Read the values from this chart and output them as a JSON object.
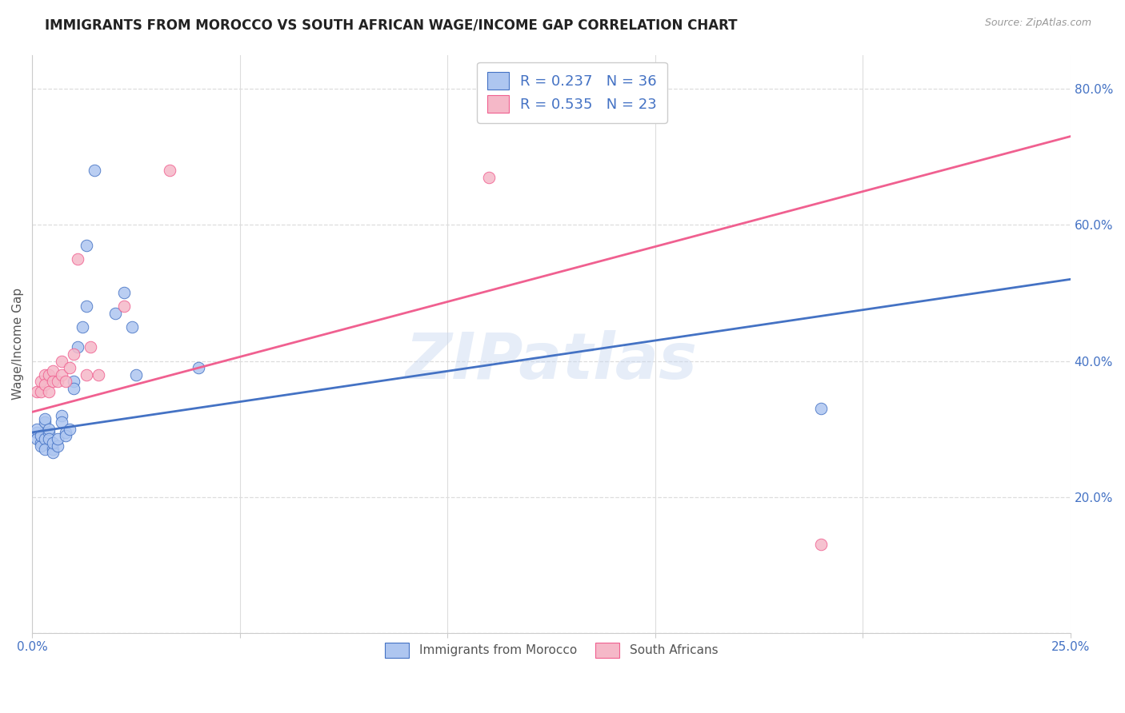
{
  "title": "IMMIGRANTS FROM MOROCCO VS SOUTH AFRICAN WAGE/INCOME GAP CORRELATION CHART",
  "source": "Source: ZipAtlas.com",
  "ylabel": "Wage/Income Gap",
  "xlim": [
    0.0,
    0.25
  ],
  "ylim": [
    0.0,
    0.85
  ],
  "xticks": [
    0.0,
    0.05,
    0.1,
    0.15,
    0.2,
    0.25
  ],
  "yticks": [
    0.0,
    0.2,
    0.4,
    0.6,
    0.8
  ],
  "ytick_labels_right": [
    "",
    "20.0%",
    "40.0%",
    "60.0%",
    "80.0%"
  ],
  "xtick_labels": [
    "0.0%",
    "",
    "",
    "",
    "",
    "25.0%"
  ],
  "blue_scatter_x": [
    0.001,
    0.001,
    0.001,
    0.002,
    0.002,
    0.002,
    0.003,
    0.003,
    0.003,
    0.003,
    0.004,
    0.004,
    0.004,
    0.005,
    0.005,
    0.005,
    0.006,
    0.006,
    0.007,
    0.007,
    0.008,
    0.008,
    0.009,
    0.01,
    0.01,
    0.011,
    0.012,
    0.013,
    0.02,
    0.022,
    0.024,
    0.025,
    0.04,
    0.19,
    0.015,
    0.013
  ],
  "blue_scatter_y": [
    0.295,
    0.3,
    0.285,
    0.28,
    0.275,
    0.29,
    0.285,
    0.31,
    0.315,
    0.27,
    0.295,
    0.3,
    0.285,
    0.27,
    0.265,
    0.28,
    0.275,
    0.285,
    0.32,
    0.31,
    0.295,
    0.29,
    0.3,
    0.37,
    0.36,
    0.42,
    0.45,
    0.48,
    0.47,
    0.5,
    0.45,
    0.38,
    0.39,
    0.33,
    0.68,
    0.57
  ],
  "pink_scatter_x": [
    0.001,
    0.002,
    0.002,
    0.003,
    0.003,
    0.004,
    0.004,
    0.005,
    0.005,
    0.006,
    0.007,
    0.007,
    0.008,
    0.009,
    0.01,
    0.011,
    0.013,
    0.014,
    0.016,
    0.022,
    0.033,
    0.11,
    0.19
  ],
  "pink_scatter_y": [
    0.355,
    0.355,
    0.37,
    0.38,
    0.365,
    0.355,
    0.38,
    0.385,
    0.37,
    0.37,
    0.38,
    0.4,
    0.37,
    0.39,
    0.41,
    0.55,
    0.38,
    0.42,
    0.38,
    0.48,
    0.68,
    0.67,
    0.13
  ],
  "blue_line_x": [
    0.0,
    0.25
  ],
  "blue_line_y": [
    0.295,
    0.52
  ],
  "pink_line_x": [
    0.0,
    0.25
  ],
  "pink_line_y": [
    0.325,
    0.73
  ],
  "blue_dot_color": "#aec6f0",
  "pink_dot_color": "#f5b8c8",
  "blue_line_color": "#4472c4",
  "pink_line_color": "#f06090",
  "R_blue": "0.237",
  "N_blue": "36",
  "R_pink": "0.535",
  "N_pink": "23",
  "watermark": "ZIPatlas",
  "bg_color": "#ffffff",
  "grid_color": "#dddddd",
  "title_fontsize": 12,
  "ylabel_fontsize": 11,
  "tick_fontsize": 11,
  "legend_fontsize": 13,
  "source_fontsize": 9
}
